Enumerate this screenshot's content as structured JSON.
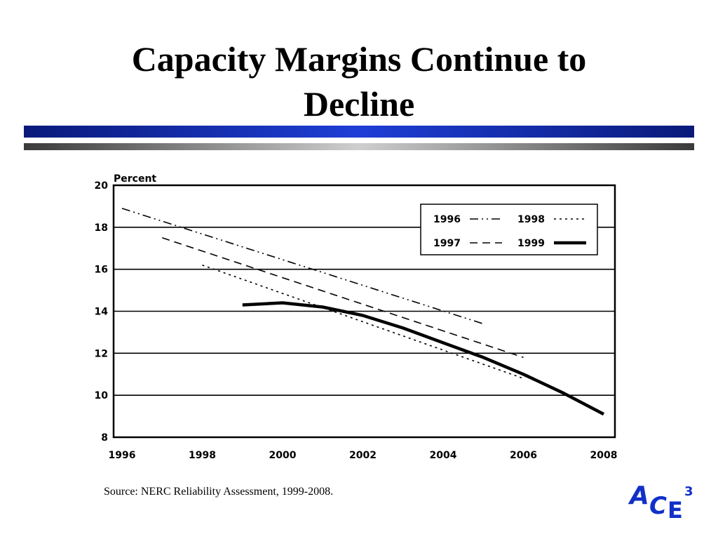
{
  "slide": {
    "title_line1": "Capacity Margins Continue to",
    "title_line2": "Decline",
    "source": "Source: NERC Reliability Assessment, 1999-2008.",
    "logo": {
      "letters": [
        "A",
        "C",
        "E"
      ],
      "superscript": "3",
      "color": "#1030c8"
    }
  },
  "chart_data": {
    "type": "line",
    "title": "",
    "ylabel": "Percent",
    "xlabel": "",
    "xlim": [
      1996,
      2008
    ],
    "ylim": [
      8,
      20
    ],
    "x_ticks": [
      "1996",
      "1998",
      "2000",
      "2002",
      "2004",
      "2006",
      "2008"
    ],
    "y_ticks": [
      "20",
      "18",
      "16",
      "14",
      "12",
      "10",
      "8"
    ],
    "grid": "horizontal",
    "legend_position": "top-right",
    "series": [
      {
        "name": "1996",
        "style": "dash-dot-dot",
        "x": [
          1996,
          2005
        ],
        "y": [
          18.9,
          13.4
        ]
      },
      {
        "name": "1997",
        "style": "dashed",
        "x": [
          1997,
          2006
        ],
        "y": [
          17.5,
          11.8
        ]
      },
      {
        "name": "1998",
        "style": "dotted",
        "x": [
          1998,
          2006
        ],
        "y": [
          16.2,
          10.8
        ]
      },
      {
        "name": "1999",
        "style": "solid-thick",
        "x": [
          1999,
          2000,
          2001,
          2002,
          2003,
          2004,
          2005,
          2006,
          2007,
          2008
        ],
        "y": [
          14.3,
          14.4,
          14.2,
          13.8,
          13.2,
          12.5,
          11.8,
          11.0,
          10.1,
          9.1
        ]
      }
    ]
  }
}
